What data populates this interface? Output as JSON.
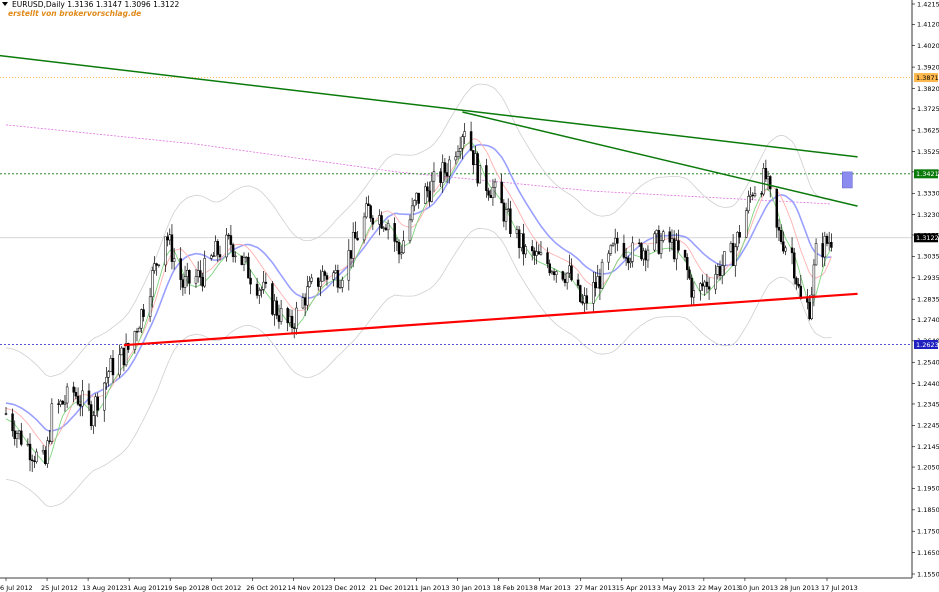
{
  "header": {
    "symbol_line": "EURUSD,Daily  1.3136 1.3147 1.3096 1.3122",
    "credit": "erstellt von brokervorschlag.de"
  },
  "colors": {
    "background": "#ffffff",
    "bull_candle": "#ffffff",
    "bear_candle": "#000000",
    "trend_green": "#0a7a0a",
    "support_red": "#ff0000",
    "ma_blue": "#9aa0ff",
    "ma_pink": "#ffb0b0",
    "ma_green": "#7fd47f",
    "bollinger": "#cfcfcf",
    "ma_200_magenta": "#e070e0",
    "level_orange": "#ffb84d",
    "level_green": "#0a7a0a",
    "level_blue": "#2020c0",
    "target_box": "#8c8cf0"
  },
  "chart_data": {
    "type": "candlestick",
    "symbol": "EURUSD",
    "timeframe": "Daily",
    "last_ohlc": {
      "open": 1.3136,
      "high": 1.3147,
      "low": 1.3096,
      "close": 1.3122
    },
    "y_ticks": [
      "1.4215",
      "1.4120",
      "1.4020",
      "1.3920",
      "1.3820",
      "1.3725",
      "1.3625",
      "1.3525",
      "1.3430",
      "1.3330",
      "1.3230",
      "1.3135",
      "1.3035",
      "1.2935",
      "1.2835",
      "1.2740",
      "1.2640",
      "1.2540",
      "1.2440",
      "1.2345",
      "1.2245",
      "1.2145",
      "1.2050",
      "1.1950",
      "1.1850",
      "1.1750",
      "1.1650",
      "1.1550"
    ],
    "ylim": [
      1.155,
      1.4215
    ],
    "x_ticks": [
      "6 Jul 2012",
      "25 Jul 2012",
      "13 Aug 2012",
      "31 Aug 2012",
      "19 Sep 2012",
      "8 Oct 2012",
      "26 Oct 2012",
      "14 Nov 2012",
      "3 Dec 2012",
      "21 Dec 2012",
      "11 Jan 2013",
      "30 Jan 2013",
      "18 Feb 2013",
      "8 Mar 2013",
      "27 Mar 2013",
      "15 Apr 2013",
      "3 May 2013",
      "22 May 2013",
      "10 Jun 2013",
      "28 Jun 2013",
      "17 Jul 2013"
    ],
    "price_tags": [
      {
        "label": "1.3871",
        "value": 1.3871,
        "kind": "orange"
      },
      {
        "label": "1.3421",
        "value": 1.3421,
        "kind": "green"
      },
      {
        "label": "1.3122",
        "value": 1.3122,
        "kind": "current"
      },
      {
        "label": "1.2623",
        "value": 1.2623,
        "kind": "blue"
      }
    ],
    "horizontal_levels": [
      {
        "value": 1.3871,
        "style": "dotted",
        "color": "orange"
      },
      {
        "value": 1.3421,
        "style": "dashed",
        "color": "green"
      },
      {
        "value": 1.3122,
        "style": "solid",
        "color": "grey"
      },
      {
        "value": 1.2623,
        "style": "dashed",
        "color": "blue"
      }
    ],
    "trendlines": [
      {
        "name": "resistance-long",
        "color": "green",
        "from": {
          "date": "2012-06-28",
          "value": 1.398
        },
        "to": {
          "date": "2013-07-31",
          "value": 1.35
        }
      },
      {
        "name": "resistance-short",
        "color": "green",
        "from": {
          "date": "2013-01-31",
          "value": 1.371
        },
        "to": {
          "date": "2013-07-31",
          "value": 1.327
        }
      },
      {
        "name": "support",
        "color": "red",
        "from": {
          "date": "2012-08-29",
          "value": 1.262
        },
        "to": {
          "date": "2013-07-31",
          "value": 1.286
        }
      }
    ],
    "price_path": [
      [
        "2012-07-06",
        1.23
      ],
      [
        "2012-07-12",
        1.22
      ],
      [
        "2012-07-20",
        1.21
      ],
      [
        "2012-07-24",
        1.206
      ],
      [
        "2012-07-27",
        1.23
      ],
      [
        "2012-08-06",
        1.24
      ],
      [
        "2012-08-14",
        1.23
      ],
      [
        "2012-08-22",
        1.25
      ],
      [
        "2012-08-31",
        1.26
      ],
      [
        "2012-09-07",
        1.28
      ],
      [
        "2012-09-17",
        1.315
      ],
      [
        "2012-09-25",
        1.29
      ],
      [
        "2012-10-04",
        1.295
      ],
      [
        "2012-10-10",
        1.305
      ],
      [
        "2012-10-17",
        1.31
      ],
      [
        "2012-10-26",
        1.295
      ],
      [
        "2012-11-06",
        1.28
      ],
      [
        "2012-11-13",
        1.27
      ],
      [
        "2012-11-20",
        1.285
      ],
      [
        "2012-11-28",
        1.295
      ],
      [
        "2012-12-06",
        1.295
      ],
      [
        "2012-12-19",
        1.325
      ],
      [
        "2012-12-28",
        1.32
      ],
      [
        "2013-01-02",
        1.305
      ],
      [
        "2013-01-10",
        1.33
      ],
      [
        "2013-01-16",
        1.335
      ],
      [
        "2013-01-24",
        1.345
      ],
      [
        "2013-02-01",
        1.365
      ],
      [
        "2013-02-08",
        1.34
      ],
      [
        "2013-02-14",
        1.335
      ],
      [
        "2013-02-22",
        1.318
      ],
      [
        "2013-03-01",
        1.305
      ],
      [
        "2013-03-12",
        1.3
      ],
      [
        "2013-03-21",
        1.295
      ],
      [
        "2013-03-27",
        1.28
      ],
      [
        "2013-04-05",
        1.295
      ],
      [
        "2013-04-12",
        1.31
      ],
      [
        "2013-04-19",
        1.305
      ],
      [
        "2013-04-30",
        1.31
      ],
      [
        "2013-05-06",
        1.31
      ],
      [
        "2013-05-13",
        1.3
      ],
      [
        "2013-05-17",
        1.285
      ],
      [
        "2013-05-24",
        1.293
      ],
      [
        "2013-06-04",
        1.305
      ],
      [
        "2013-06-13",
        1.335
      ],
      [
        "2013-06-19",
        1.34
      ],
      [
        "2013-06-24",
        1.315
      ],
      [
        "2013-07-01",
        1.305
      ],
      [
        "2013-07-05",
        1.282
      ],
      [
        "2013-07-09",
        1.28
      ],
      [
        "2013-07-12",
        1.305
      ],
      [
        "2013-07-19",
        1.312
      ]
    ],
    "bollinger_pct": 0.025,
    "ma_pct": {
      "blue": 0.004,
      "pink": 0.002,
      "green": -0.002
    },
    "ma200": [
      [
        "2012-07-06",
        1.365
      ],
      [
        "2012-10-01",
        1.356
      ],
      [
        "2013-01-01",
        1.343
      ],
      [
        "2013-04-01",
        1.334
      ],
      [
        "2013-07-19",
        1.328
      ]
    ],
    "target_box": {
      "from_date": "2013-07-24",
      "to_date": "2013-07-26",
      "high": 1.343,
      "low": 1.3355
    }
  }
}
